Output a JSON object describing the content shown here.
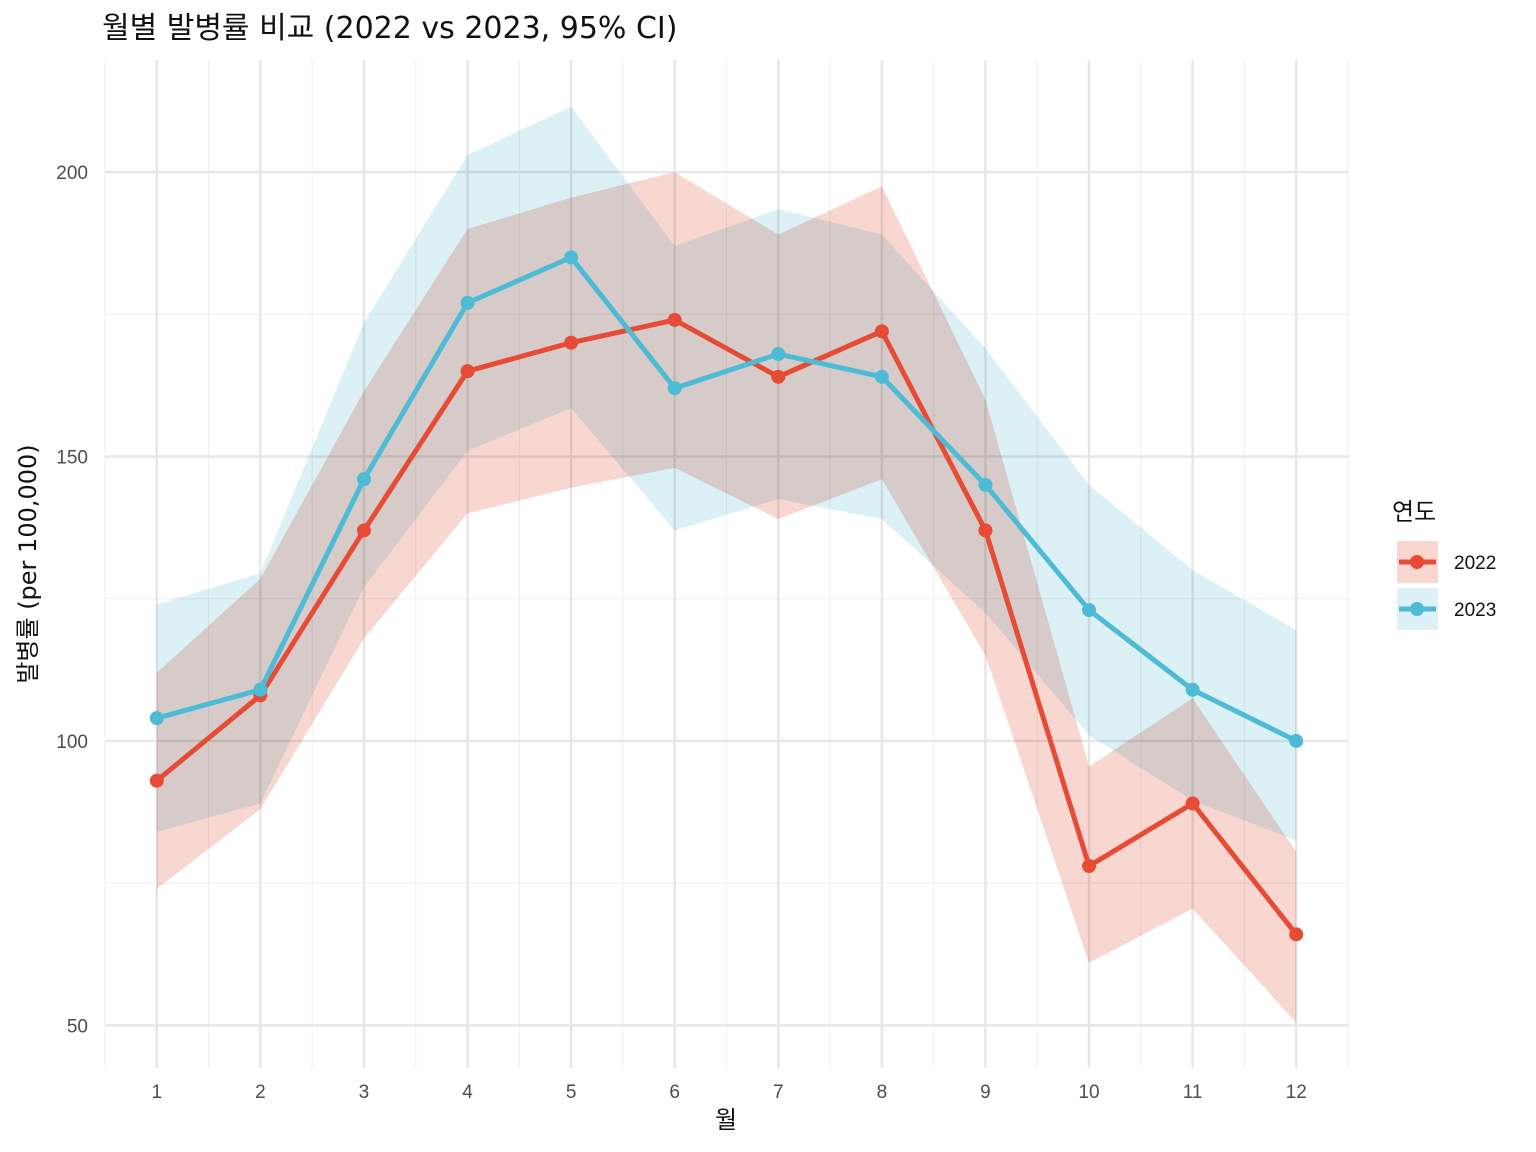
{
  "chart_data": {
    "type": "line",
    "title": "월별 발병률 비교 (2022 vs 2023, 95% CI)",
    "xlabel": "월",
    "ylabel": "발병률 (per 100,000)",
    "x": [
      1,
      2,
      3,
      4,
      5,
      6,
      7,
      8,
      9,
      10,
      11,
      12
    ],
    "x_ticks": [
      "1",
      "2",
      "3",
      "4",
      "5",
      "6",
      "7",
      "8",
      "9",
      "10",
      "11",
      "12"
    ],
    "y_ticks": [
      50,
      100,
      150,
      200
    ],
    "ylim": [
      42.5,
      219.7
    ],
    "xlim": [
      0.5,
      12.5
    ],
    "grid": true,
    "legend": {
      "title": "연도",
      "placement": "right"
    },
    "series": [
      {
        "name": "2022",
        "color": "#E64B35",
        "fill": "#F4B6AB",
        "values": [
          93,
          108,
          137,
          165,
          170,
          174,
          164,
          172,
          137,
          78,
          89,
          66
        ],
        "lower": [
          74,
          88,
          118,
          140,
          144.5,
          148,
          139,
          146,
          115,
          61,
          70.5,
          50.5
        ],
        "upper": [
          112,
          128.5,
          161.5,
          190,
          195.5,
          200,
          189,
          197.5,
          160,
          95.5,
          107.5,
          80.5
        ]
      },
      {
        "name": "2023",
        "color": "#4DBBD5",
        "fill": "#BFE6EF",
        "values": [
          104,
          109,
          146,
          177,
          185,
          162,
          168,
          164,
          145,
          123,
          109,
          100
        ],
        "lower": [
          84,
          89,
          127,
          151,
          158.5,
          137,
          142.5,
          139,
          122.5,
          101,
          89.5,
          82.5
        ],
        "upper": [
          124,
          129.5,
          173.5,
          203,
          211.5,
          187,
          193.5,
          189,
          169,
          145,
          130,
          119.5
        ]
      }
    ]
  }
}
